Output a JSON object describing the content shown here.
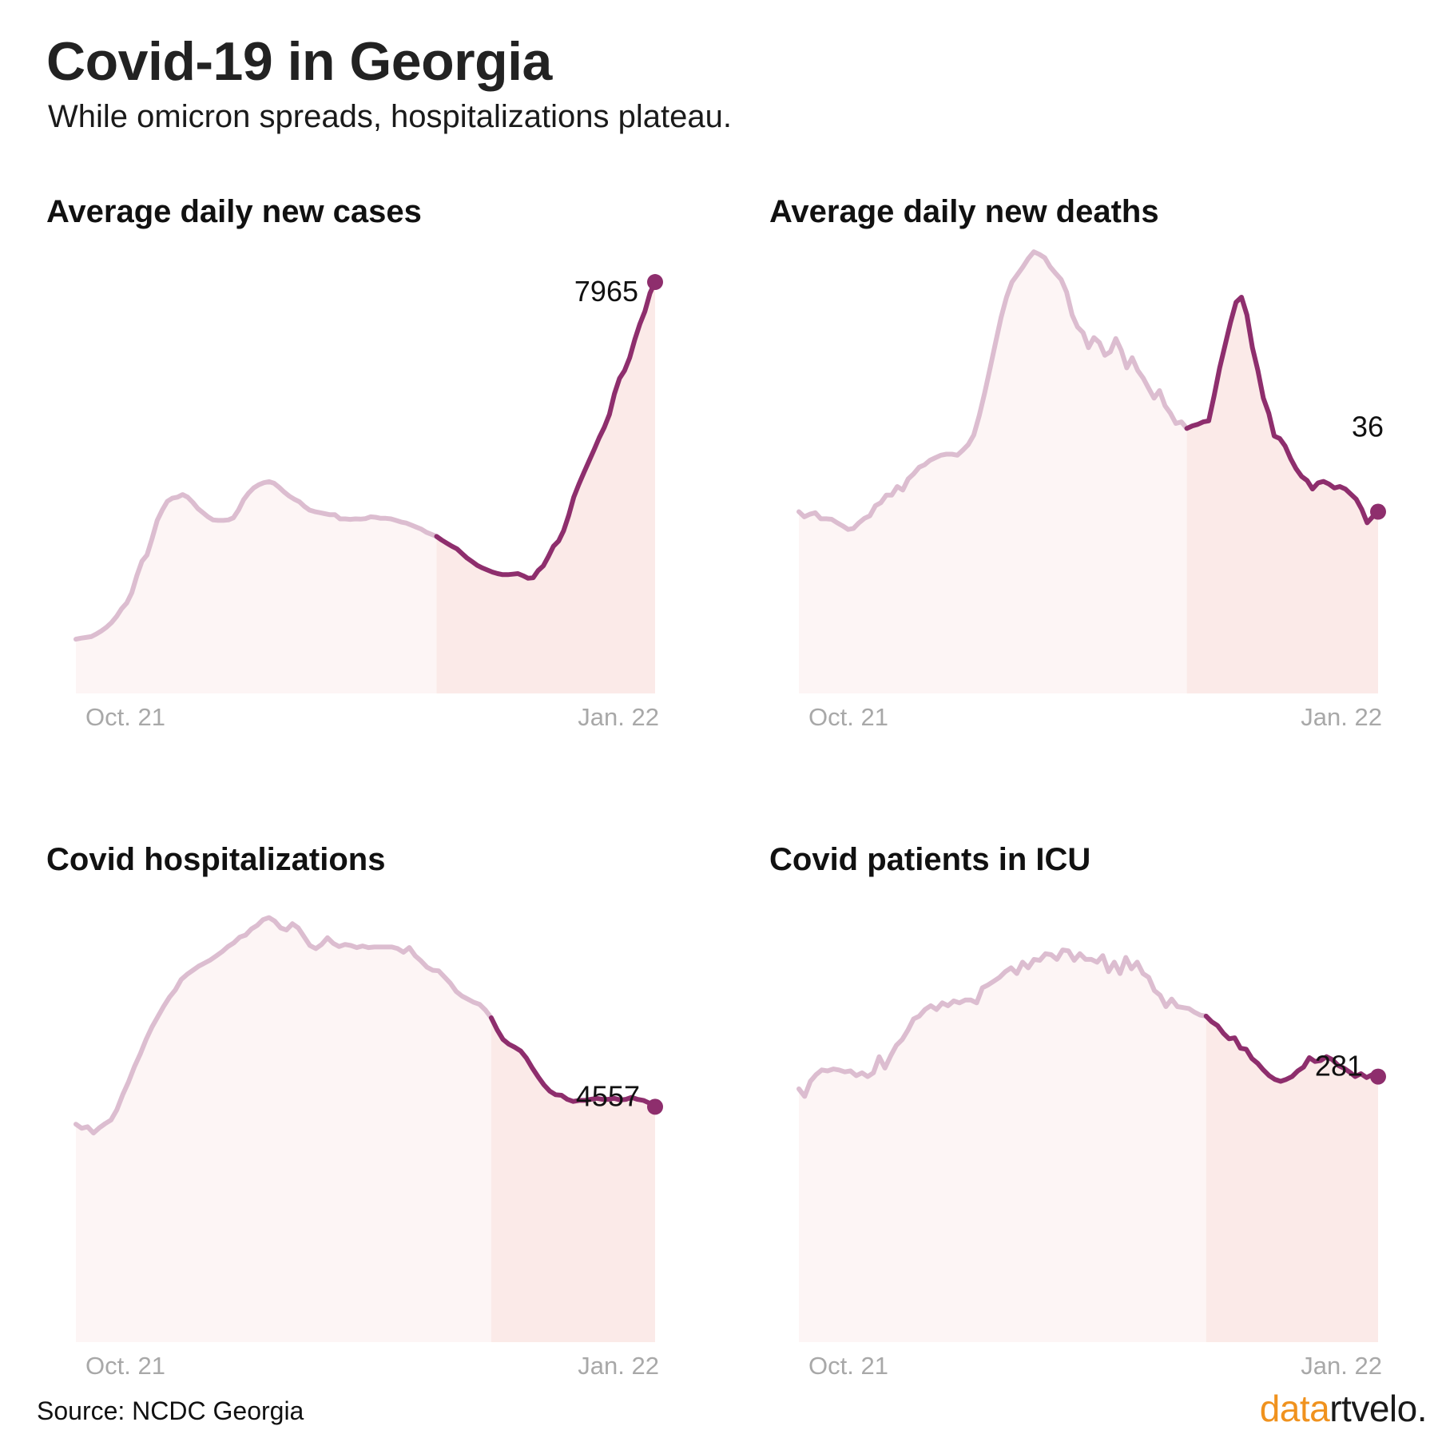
{
  "title": "Covid-19 in Georgia",
  "subtitle": "While omicron spreads, hospitalizations plateau.",
  "source": "Source: NCDC Georgia",
  "logo": {
    "part1": "data",
    "part2": "rtvelo."
  },
  "colors": {
    "highlight": "#8e2e6d",
    "faded": "#dcbdd0",
    "area_early": "#fdf5f5",
    "area_recent": "#fbeae8",
    "tick": "#a8a8a8",
    "logo_accent": "#f0921e"
  },
  "chart_data": [
    {
      "type": "area",
      "title": "Average daily new cases",
      "xticks": [
        "Oct. 21",
        "Jan. 22"
      ],
      "end_label": "7965",
      "highlight_from_day": 71,
      "ylim": [
        0,
        8600
      ],
      "values": [
        1050,
        1070,
        1085,
        1100,
        1150,
        1210,
        1280,
        1370,
        1490,
        1640,
        1750,
        1950,
        2280,
        2560,
        2680,
        3000,
        3350,
        3550,
        3720,
        3780,
        3800,
        3850,
        3800,
        3700,
        3580,
        3500,
        3420,
        3360,
        3350,
        3350,
        3360,
        3400,
        3550,
        3750,
        3880,
        3980,
        4040,
        4080,
        4100,
        4070,
        3990,
        3900,
        3820,
        3760,
        3710,
        3620,
        3550,
        3520,
        3500,
        3480,
        3460,
        3460,
        3380,
        3380,
        3370,
        3380,
        3375,
        3385,
        3420,
        3410,
        3390,
        3390,
        3380,
        3350,
        3320,
        3300,
        3260,
        3220,
        3180,
        3120,
        3080,
        3040,
        2970,
        2910,
        2850,
        2800,
        2710,
        2620,
        2550,
        2480,
        2430,
        2390,
        2350,
        2320,
        2300,
        2300,
        2310,
        2320,
        2280,
        2230,
        2240,
        2380,
        2470,
        2650,
        2850,
        2950,
        3150,
        3450,
        3800,
        4050,
        4280,
        4500,
        4720,
        4950,
        5150,
        5400,
        5800,
        6100,
        6250,
        6500,
        6850,
        7150,
        7400,
        7750,
        7965
      ]
    },
    {
      "type": "area",
      "title": "Average daily new deaths",
      "xticks": [
        "Oct. 21",
        "Jan. 22"
      ],
      "end_label": "36",
      "highlight_from_day": 71,
      "ylim": [
        0,
        88
      ],
      "values": [
        36,
        35,
        35.5,
        35.8,
        34.6,
        34.6,
        34.5,
        33.8,
        33.2,
        32.5,
        32.7,
        33.8,
        34.7,
        35.2,
        37.2,
        37.8,
        39.3,
        39.3,
        41.0,
        40.3,
        42.5,
        43.5,
        44.8,
        45.3,
        46.2,
        46.7,
        47.2,
        47.4,
        47.4,
        47.2,
        48.2,
        49.3,
        51.2,
        55.0,
        59.5,
        64.5,
        69.5,
        74.5,
        78.5,
        81.5,
        83.0,
        84.5,
        86.2,
        87.5,
        87.0,
        86.3,
        84.5,
        83.2,
        82.0,
        79.5,
        75.0,
        72.6,
        71.5,
        68.5,
        70.5,
        69.5,
        67.0,
        67.7,
        70.3,
        68.0,
        64.5,
        66.5,
        64.0,
        62.5,
        60.5,
        58.5,
        60.0,
        57.0,
        55.5,
        53.5,
        53.8,
        52.5,
        53.0,
        53.3,
        53.8,
        54.0,
        59.0,
        64.5,
        69.0,
        73.5,
        77.5,
        78.5,
        75.0,
        68.5,
        64.0,
        58.5,
        55.5,
        51.0,
        50.5,
        49.0,
        46.5,
        44.5,
        43.0,
        42.2,
        40.5,
        41.7,
        42.0,
        41.5,
        40.7,
        41.0,
        40.5,
        39.5,
        38.5,
        36.5,
        33.8,
        35.0,
        36.0
      ]
    },
    {
      "type": "area",
      "title": "Covid hospitalizations",
      "xticks": [
        "Oct. 21",
        "Jan. 22"
      ],
      "end_label": "4557",
      "highlight_from_day": 71,
      "ylim": [
        0,
        8600
      ],
      "values": [
        4220,
        4140,
        4170,
        4050,
        4150,
        4230,
        4300,
        4500,
        4790,
        5040,
        5330,
        5580,
        5860,
        6100,
        6300,
        6500,
        6680,
        6820,
        7020,
        7120,
        7200,
        7280,
        7340,
        7400,
        7480,
        7560,
        7660,
        7730,
        7840,
        7880,
        8000,
        8070,
        8180,
        8220,
        8150,
        8020,
        7980,
        8100,
        8020,
        7850,
        7680,
        7620,
        7700,
        7830,
        7720,
        7660,
        7700,
        7680,
        7640,
        7670,
        7640,
        7650,
        7650,
        7650,
        7650,
        7620,
        7550,
        7640,
        7480,
        7380,
        7260,
        7200,
        7190,
        7070,
        6950,
        6790,
        6700,
        6640,
        6580,
        6540,
        6430,
        6280,
        6050,
        5860,
        5770,
        5710,
        5640,
        5500,
        5310,
        5140,
        4980,
        4860,
        4790,
        4780,
        4700,
        4660,
        4680,
        4680,
        4700,
        4720,
        4700,
        4700,
        4720,
        4690,
        4700,
        4740,
        4700,
        4680,
        4630,
        4557
      ]
    },
    {
      "type": "area",
      "title": "Covid patients in ICU",
      "xticks": [
        "Oct. 21",
        "Jan. 22"
      ],
      "end_label": "281",
      "highlight_from_day": 71,
      "ylim": [
        0,
        470
      ],
      "values": [
        268,
        260,
        276,
        283,
        288,
        287,
        289,
        288,
        286,
        287,
        282,
        285,
        281,
        285,
        302,
        290,
        303,
        314,
        320,
        330,
        342,
        345,
        352,
        356,
        352,
        359,
        356,
        361,
        359,
        362,
        362,
        359,
        375,
        378,
        382,
        386,
        392,
        396,
        390,
        402,
        396,
        405,
        404,
        411,
        410,
        405,
        415,
        414,
        404,
        411,
        405,
        405,
        402,
        409,
        392,
        402,
        390,
        407,
        395,
        402,
        390,
        386,
        372,
        367,
        355,
        363,
        355,
        354,
        353,
        349,
        346,
        345,
        339,
        335,
        327,
        321,
        322,
        311,
        310,
        300,
        295,
        288,
        282,
        278,
        276,
        278,
        281,
        287,
        291,
        301,
        297,
        298,
        302,
        299,
        293,
        290,
        286,
        281,
        284,
        280,
        283,
        281
      ]
    }
  ]
}
